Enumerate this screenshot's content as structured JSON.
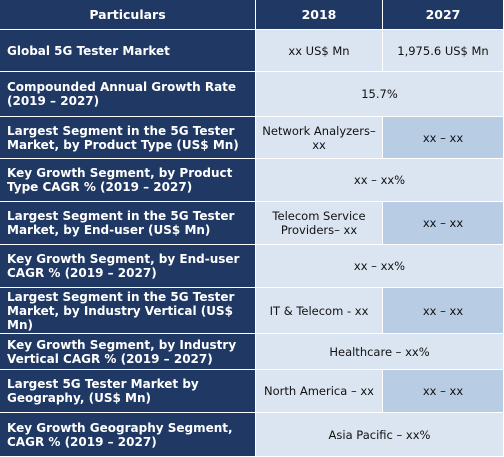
{
  "header": {
    "col1": "Particulars",
    "col2": "2018",
    "col3": "2027"
  },
  "rows": [
    {
      "label": "Global 5G Tester Market",
      "v2018": "xx US$ Mn",
      "v2027": "1,975.6 US$ Mn"
    },
    {
      "label": "Compounded Annual Growth Rate (2019 – 2027)",
      "value": "15.7%"
    },
    {
      "label": "Largest Segment in the 5G Tester Market, by Product Type (US$ Mn)",
      "v2018": "Network Analyzers– xx",
      "v2027": "xx – xx"
    },
    {
      "label": "Key Growth Segment, by Product Type CAGR % (2019 – 2027)",
      "value": "xx – xx%"
    },
    {
      "label": "Largest Segment in the 5G Tester Market, by End-user (US$ Mn)",
      "v2018": "Telecom Service Providers– xx",
      "v2027": "xx – xx"
    },
    {
      "label": "Key Growth Segment, by End-user CAGR % (2019 – 2027)",
      "value": "xx – xx%"
    },
    {
      "label": "Largest Segment in the 5G Tester Market, by Industry Vertical (US$ Mn)",
      "v2018": "IT & Telecom - xx",
      "v2027": "xx – xx"
    },
    {
      "label": "Key Growth Segment, by Industry Vertical CAGR % (2019 – 2027)",
      "value": "Healthcare – xx%"
    },
    {
      "label": "Largest 5G Tester Market by Geography, (US$ Mn)",
      "v2018": "North America – xx",
      "v2027": "xx – xx"
    },
    {
      "label": "Key Growth Geography Segment, CAGR % (2019 – 2027)",
      "value": "Asia Pacific – xx%"
    }
  ]
}
